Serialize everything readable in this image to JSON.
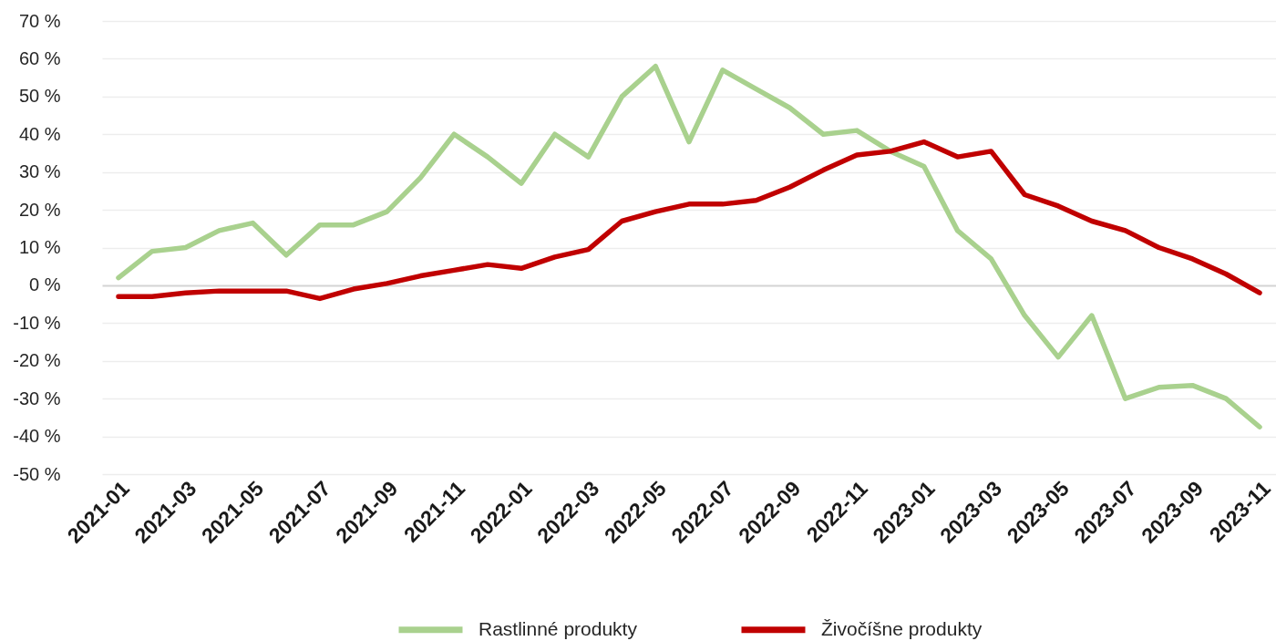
{
  "chart_data": {
    "type": "line",
    "categories": [
      "2021-01",
      null,
      "2021-03",
      null,
      "2021-05",
      null,
      "2021-07",
      null,
      "2021-09",
      null,
      "2021-11",
      null,
      "2022-01",
      null,
      "2022-03",
      null,
      "2022-05",
      null,
      "2022-07",
      null,
      "2022-09",
      null,
      "2022-11",
      null,
      "2023-01",
      null,
      "2023-03",
      null,
      "2023-05",
      null,
      "2023-07",
      null,
      "2023-09",
      null,
      "2023-11"
    ],
    "series": [
      {
        "name": "Rastlinné produkty",
        "color": "#a9d18e",
        "values": [
          2,
          9,
          10,
          14.5,
          16.5,
          8,
          16,
          16,
          19.5,
          28.5,
          40,
          34,
          27,
          40,
          34,
          50,
          58,
          38,
          57,
          52,
          47,
          40,
          41,
          35.5,
          31.5,
          14.5,
          7,
          -8,
          -19,
          -8,
          -30,
          -27,
          -26.5,
          -30,
          -37.5
        ]
      },
      {
        "name": "Živočíšne produkty",
        "color": "#c00000",
        "values": [
          -3,
          -3,
          -2,
          -1.5,
          -1.5,
          -1.5,
          -3.5,
          -1,
          0.5,
          2.5,
          4,
          5.5,
          4.5,
          7.5,
          9.5,
          17,
          19.5,
          21.5,
          21.5,
          22.5,
          26,
          30.5,
          34.5,
          35.5,
          38,
          34,
          35.5,
          24,
          21,
          17,
          14.5,
          10,
          7,
          3,
          -2
        ]
      }
    ],
    "ylim": [
      -50,
      70
    ],
    "yticks": [
      {
        "value": -50,
        "label": "-50 %"
      },
      {
        "value": -40,
        "label": "-40 %"
      },
      {
        "value": -30,
        "label": "-30 %"
      },
      {
        "value": -20,
        "label": "-20 %"
      },
      {
        "value": -10,
        "label": "-10 %"
      },
      {
        "value": 0,
        "label": "0 %"
      },
      {
        "value": 10,
        "label": "10 %"
      },
      {
        "value": 20,
        "label": "20 %"
      },
      {
        "value": 30,
        "label": "30 %"
      },
      {
        "value": 40,
        "label": "40 %"
      },
      {
        "value": 50,
        "label": "50 %"
      },
      {
        "value": 60,
        "label": "60 %"
      },
      {
        "value": 70,
        "label": "70 %"
      }
    ],
    "grid": "y",
    "legend": "bottom"
  }
}
